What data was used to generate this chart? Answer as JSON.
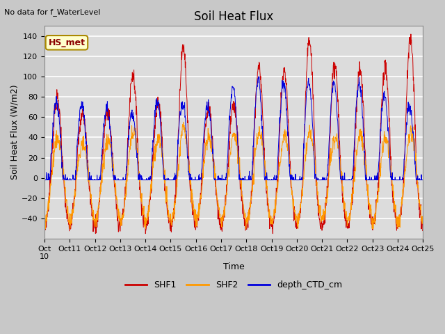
{
  "title": "Soil Heat Flux",
  "xlabel": "Time",
  "ylabel": "Soil Heat Flux (W/m2)",
  "ylim": [
    -60,
    150
  ],
  "yticks": [
    -40,
    -20,
    0,
    20,
    40,
    60,
    80,
    100,
    120,
    140
  ],
  "xtick_labels": [
    "Oct 10",
    "Oct 11",
    "Oct 12",
    "Oct 13",
    "Oct 14",
    "Oct 15",
    "Oct 16",
    "Oct 17",
    "Oct 18",
    "Oct 19",
    "Oct 20",
    "Oct 21",
    "Oct 22",
    "Oct 23",
    "Oct 24",
    "Oct 25"
  ],
  "no_data_text": "No data for f_WaterLevel",
  "hs_met_label": "HS_met",
  "legend_entries": [
    "SHF1",
    "SHF2",
    "depth_CTD_cm"
  ],
  "colors": {
    "SHF1": "#cc0000",
    "SHF2": "#ff9900",
    "depth_CTD_cm": "#0000dd"
  },
  "bg_color": "#c8c8c8",
  "plot_bg_color": "#dcdcdc",
  "grid_color": "#ffffff",
  "n_points": 1440,
  "seed": 7
}
